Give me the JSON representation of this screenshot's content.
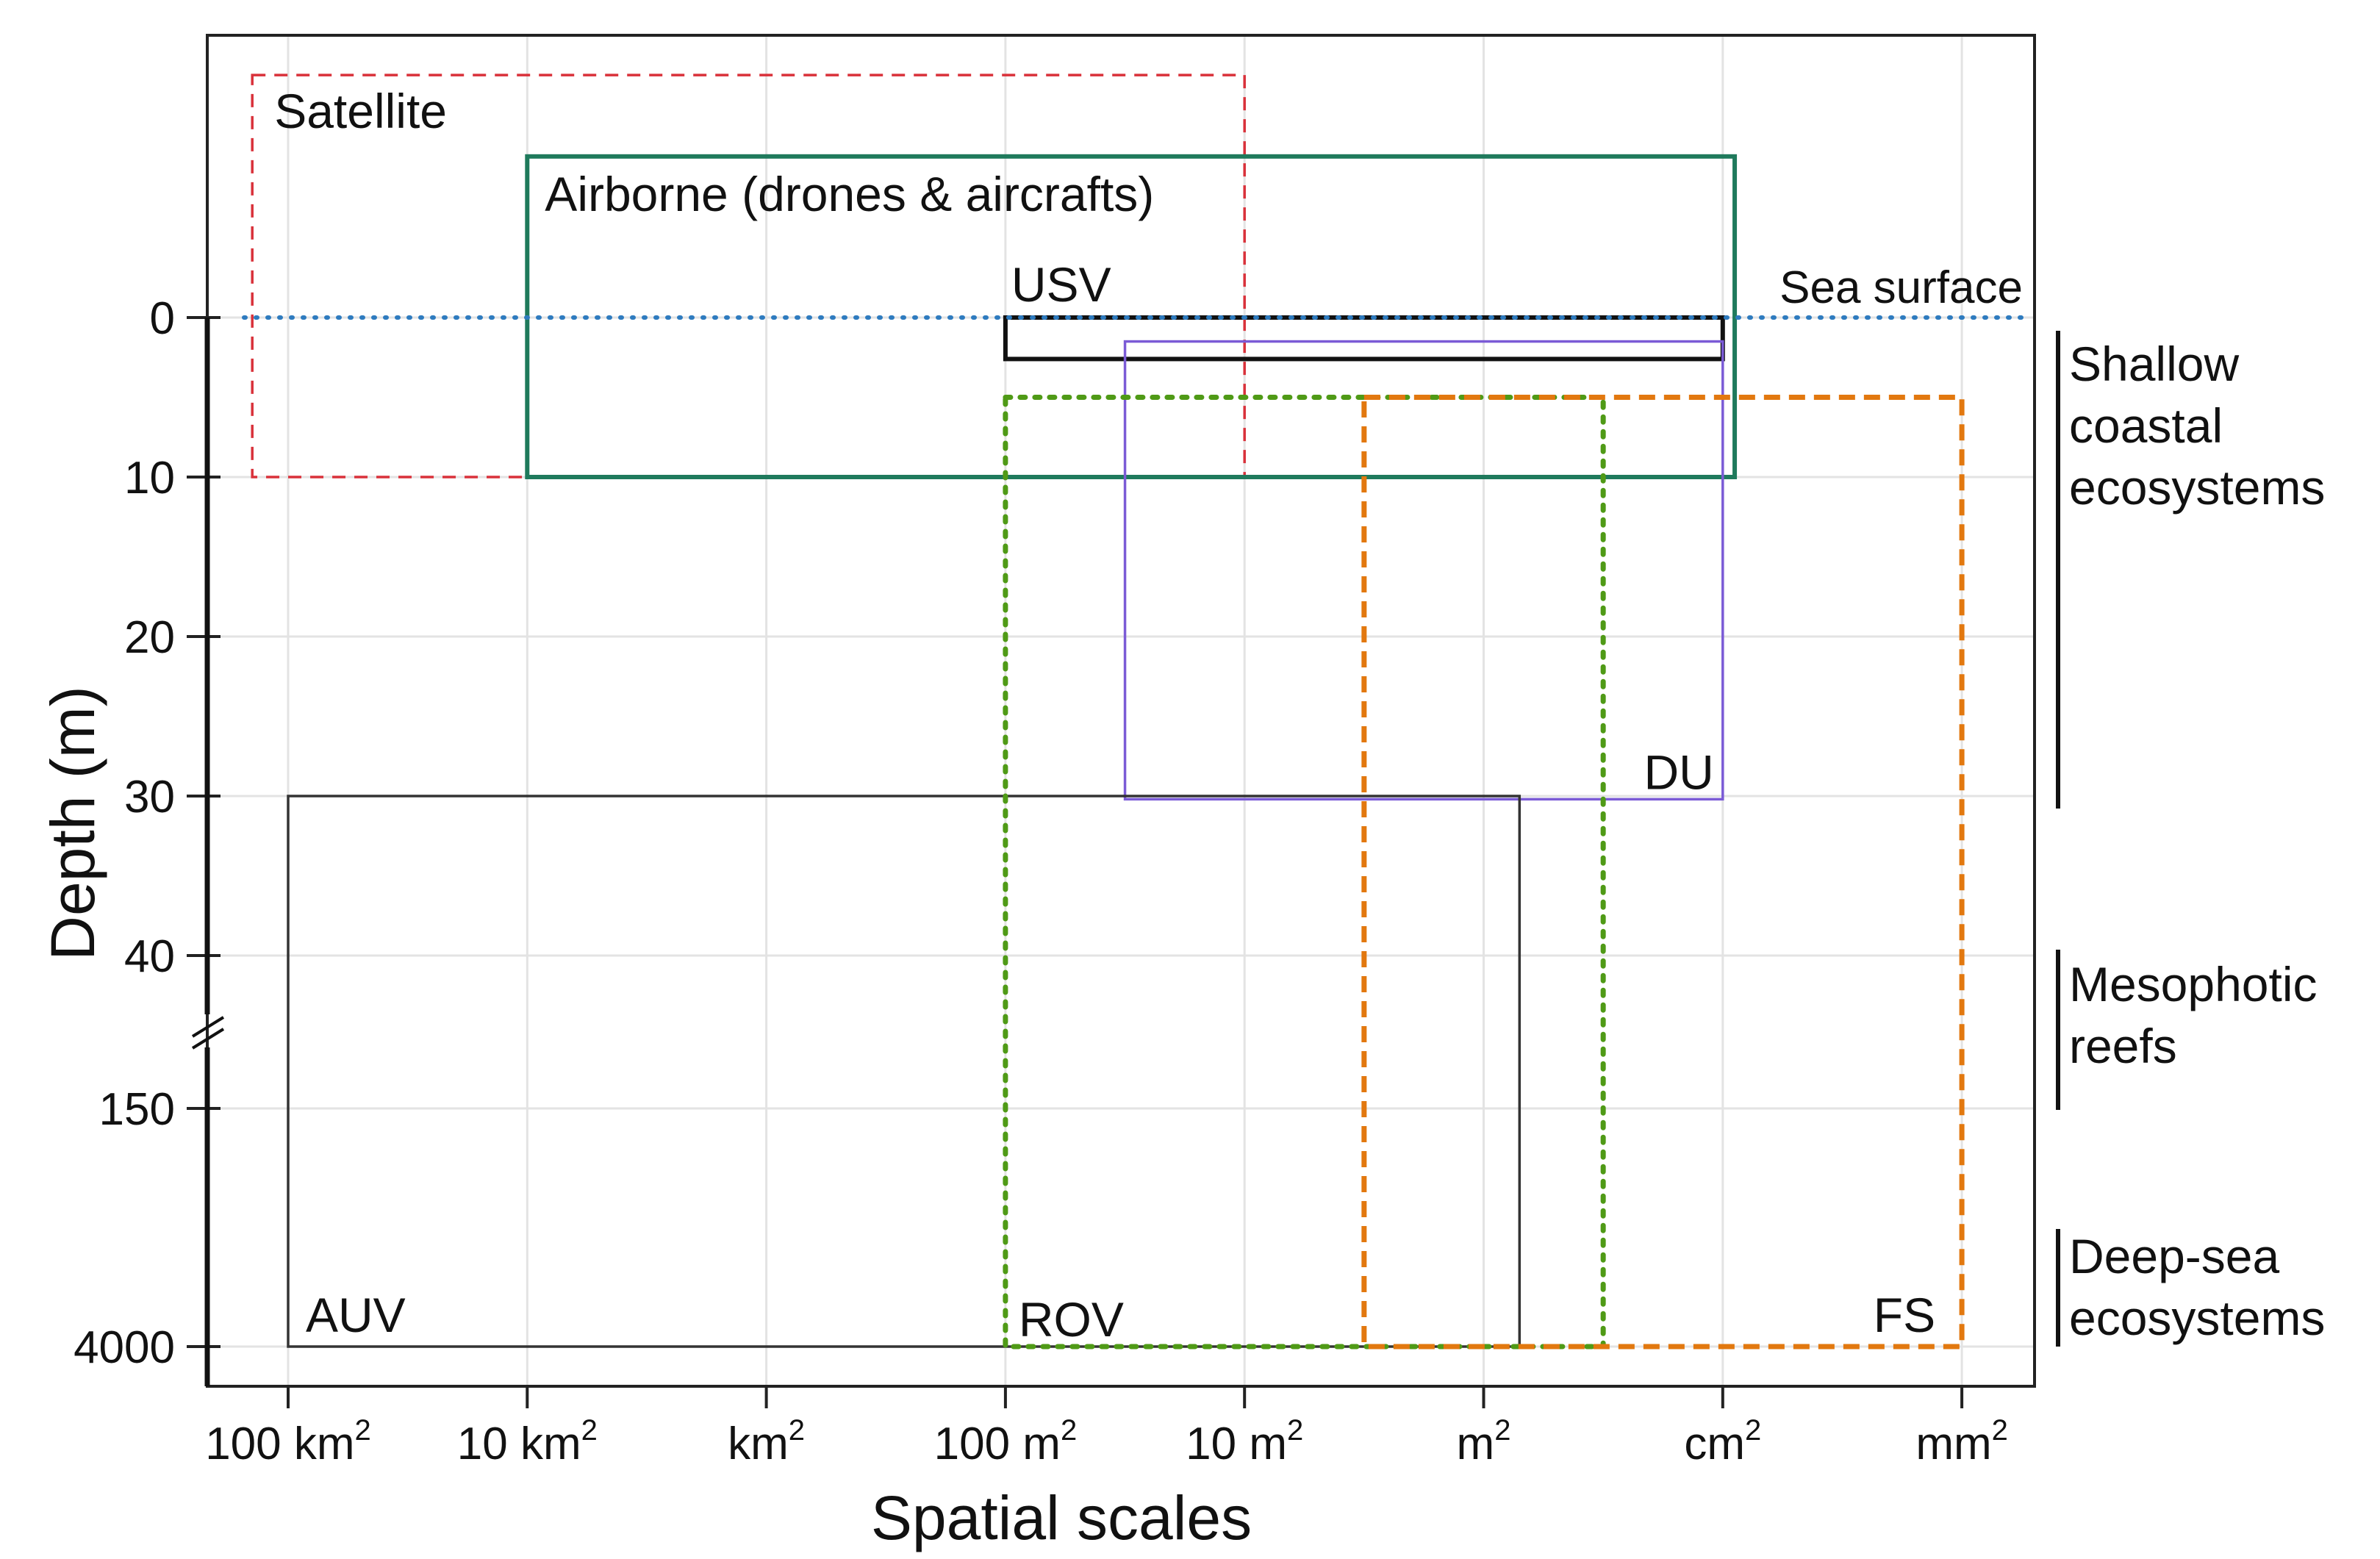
{
  "chart_data": {
    "type": "box-range",
    "title": "",
    "xlabel": "Spatial scales",
    "ylabel": "Depth (m)",
    "x_categories": [
      "100 km²",
      "10 km²",
      "km²",
      "100 m²",
      "10 m²",
      "m²",
      "cm²",
      "mm²"
    ],
    "x_category_parts": [
      {
        "base": "100 km",
        "sup": "2"
      },
      {
        "base": "10 km",
        "sup": "2"
      },
      {
        "base": "km",
        "sup": "2"
      },
      {
        "base": "100 m",
        "sup": "2"
      },
      {
        "base": "10 m",
        "sup": "2"
      },
      {
        "base": "m",
        "sup": "2"
      },
      {
        "base": "cm",
        "sup": "2"
      },
      {
        "base": "mm",
        "sup": "2"
      }
    ],
    "y_ticks": [
      "0",
      "10",
      "20",
      "30",
      "40",
      "150",
      "4000"
    ],
    "y_axis_break": "between 40 and 150",
    "grid": true,
    "sea_surface": {
      "label": "Sea surface",
      "depth": 0,
      "color": "#2e7bbf"
    },
    "series": [
      {
        "name": "Satellite",
        "x_from": -0.15,
        "x_to": 4.0,
        "depth_top": -15.2,
        "depth_bottom": 10,
        "color": "#d9313a",
        "style": "dashed"
      },
      {
        "name": "Airborne (drones & aircrafts)",
        "x_from": 1.0,
        "x_to": 6.05,
        "depth_top": -10.1,
        "depth_bottom": 10,
        "color": "#1f7a5c",
        "style": "solid"
      },
      {
        "name": "USV",
        "x_from": 3.0,
        "x_to": 6.0,
        "depth_top": 0,
        "depth_bottom": 2.6,
        "color": "#111111",
        "style": "solid"
      },
      {
        "name": "DU",
        "x_from": 3.5,
        "x_to": 6.0,
        "depth_top": 1.5,
        "depth_bottom": 30.2,
        "color": "#7b5bd6",
        "style": "solid"
      },
      {
        "name": "AUV",
        "x_from": 0.0,
        "x_to": 5.15,
        "depth_top": 30,
        "depth_bottom": 4000,
        "color": "#333333",
        "style": "solid"
      },
      {
        "name": "ROV",
        "x_from": 3.0,
        "x_to": 5.5,
        "depth_top": 5,
        "depth_bottom": 4000,
        "color": "#4f9a16",
        "style": "dotted"
      },
      {
        "name": "FS",
        "x_from": 4.5,
        "x_to": 7.0,
        "depth_top": 5,
        "depth_bottom": 4000,
        "color": "#e2780f",
        "style": "dashed"
      }
    ],
    "ecosystem_bands": [
      {
        "label_lines": [
          "Shallow",
          "coastal",
          "ecosystems"
        ],
        "depth_from": 0,
        "depth_to": 30
      },
      {
        "label_lines": [
          "Mesophotic",
          "reefs"
        ],
        "depth_from": 40,
        "depth_to": 150
      },
      {
        "label_lines": [
          "Deep-sea",
          "ecosystems"
        ],
        "depth_from": "below 150",
        "depth_to": 4000
      }
    ]
  }
}
